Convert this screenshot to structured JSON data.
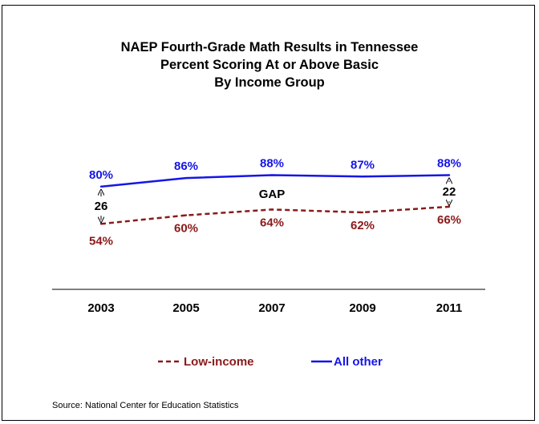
{
  "title_lines": [
    "NAEP Fourth-Grade Math Results in Tennessee",
    "Percent Scoring At or Above Basic",
    "By Income Group"
  ],
  "source": "Source: National Center for Education Statistics",
  "gap_label": "GAP",
  "gap_start": "26",
  "gap_end": "22",
  "colors": {
    "low_income": "#8B1A1A",
    "all_other": "#1515E8"
  },
  "chart_data": {
    "type": "line",
    "categories": [
      "2003",
      "2005",
      "2007",
      "2009",
      "2011"
    ],
    "series": [
      {
        "name": "Low-income",
        "values": [
          54,
          60,
          64,
          62,
          66
        ],
        "labels": [
          "54%",
          "60%",
          "64%",
          "62%",
          "66%"
        ],
        "style": "dashed"
      },
      {
        "name": "All other",
        "values": [
          80,
          86,
          88,
          87,
          88
        ],
        "labels": [
          "80%",
          "86%",
          "88%",
          "87%",
          "88%"
        ],
        "style": "solid"
      }
    ],
    "legend_position": "bottom"
  }
}
